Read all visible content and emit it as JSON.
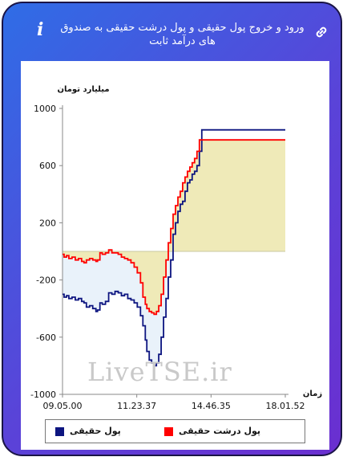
{
  "header": {
    "title": "ورود و خروج پول حقیقی و پول درشت حقیقی به صندوق های درآمد ثابت",
    "info_glyph": "i",
    "link_icon": "link-icon"
  },
  "colors": {
    "series_real_money": "#0d1580",
    "series_large_real_money": "#ff0000",
    "fill_positive": "#efeab8",
    "fill_negative": "#e9f2fa",
    "card_gradient_start": "#2f6de6",
    "card_gradient_end": "#6a2fd0"
  },
  "watermark": "LiveTSE.ir",
  "chart_data": {
    "type": "line",
    "ylabel": "میلیارد تومان",
    "xlabel": "زمان",
    "ylim": [
      -1000,
      1000
    ],
    "y_ticks": [
      "1000",
      "600",
      "200",
      "-200",
      "-600",
      "-1000"
    ],
    "x_ticks": [
      "09.05.00",
      "11.23.37",
      "14.46.35",
      "18.01.52"
    ],
    "legend_position": "bottom",
    "grid": false,
    "series": [
      {
        "name": "پول حقیقی",
        "color": "#0d1580",
        "x": [
          0,
          2,
          5,
          8,
          12,
          16,
          20,
          24,
          27,
          30,
          34,
          38,
          42,
          44,
          47,
          50,
          54,
          58,
          62,
          66,
          70,
          74,
          78,
          82,
          86,
          90,
          94,
          98,
          101,
          104,
          106,
          109,
          112,
          115,
          118,
          121,
          124,
          127,
          130,
          133,
          136,
          139,
          142,
          145,
          148,
          151,
          154,
          157,
          160,
          163,
          166,
          169,
          172,
          175,
          178,
          181,
          184,
          187,
          190,
          193,
          196,
          199,
          202,
          205,
          208,
          211,
          214,
          217,
          220,
          223,
          226,
          229,
          232,
          235,
          238,
          241,
          244,
          247,
          250,
          253,
          256,
          259,
          262,
          265,
          268,
          271,
          274,
          277,
          280
        ],
        "y": [
          -300,
          -320,
          -310,
          -330,
          -320,
          -340,
          -330,
          -350,
          -360,
          -390,
          -380,
          -400,
          -420,
          -410,
          -360,
          -370,
          -350,
          -290,
          -300,
          -280,
          -290,
          -310,
          -300,
          -330,
          -340,
          -360,
          -390,
          -450,
          -520,
          -620,
          -700,
          -760,
          -780,
          -800,
          -780,
          -720,
          -600,
          -460,
          -330,
          -180,
          -60,
          120,
          200,
          280,
          330,
          350,
          420,
          480,
          500,
          540,
          560,
          600,
          700,
          850,
          850,
          850,
          850,
          850,
          850,
          850,
          850,
          850,
          850,
          850,
          850,
          850,
          850,
          850,
          850,
          850,
          850,
          850,
          850,
          850,
          850,
          850,
          850,
          850,
          850,
          850,
          850,
          850,
          850,
          850,
          850,
          850,
          850,
          850,
          850
        ]
      },
      {
        "name": "پول درشت حقیقی",
        "color": "#ff0000",
        "x": [
          0,
          2,
          5,
          8,
          12,
          16,
          20,
          24,
          27,
          30,
          34,
          38,
          42,
          44,
          47,
          50,
          54,
          58,
          62,
          66,
          70,
          74,
          78,
          82,
          86,
          90,
          94,
          98,
          101,
          104,
          106,
          109,
          112,
          115,
          118,
          121,
          124,
          127,
          130,
          133,
          136,
          139,
          142,
          145,
          148,
          151,
          154,
          157,
          160,
          163,
          166,
          169,
          172,
          175,
          178,
          181,
          184,
          187,
          190,
          193,
          196,
          199,
          202,
          205,
          208,
          211,
          214,
          217,
          220,
          223,
          226,
          229,
          232,
          235,
          238,
          241,
          244,
          247,
          250,
          253,
          256,
          259,
          262,
          265,
          268,
          271,
          274,
          277,
          280
        ],
        "y": [
          -20,
          -40,
          -30,
          -50,
          -40,
          -60,
          -50,
          -70,
          -80,
          -60,
          -50,
          -60,
          -70,
          -60,
          -10,
          -20,
          -10,
          10,
          -10,
          -10,
          -20,
          -40,
          -50,
          -60,
          -80,
          -110,
          -150,
          -220,
          -320,
          -370,
          -400,
          -420,
          -430,
          -440,
          -420,
          -380,
          -300,
          -180,
          -60,
          60,
          160,
          260,
          320,
          380,
          420,
          480,
          520,
          560,
          590,
          620,
          650,
          700,
          780,
          780,
          780,
          780,
          780,
          780,
          780,
          780,
          780,
          780,
          780,
          780,
          780,
          780,
          780,
          780,
          780,
          780,
          780,
          780,
          780,
          780,
          780,
          780,
          780,
          780,
          780,
          780,
          780,
          780,
          780,
          780,
          780,
          780,
          780,
          780,
          780
        ]
      }
    ]
  }
}
